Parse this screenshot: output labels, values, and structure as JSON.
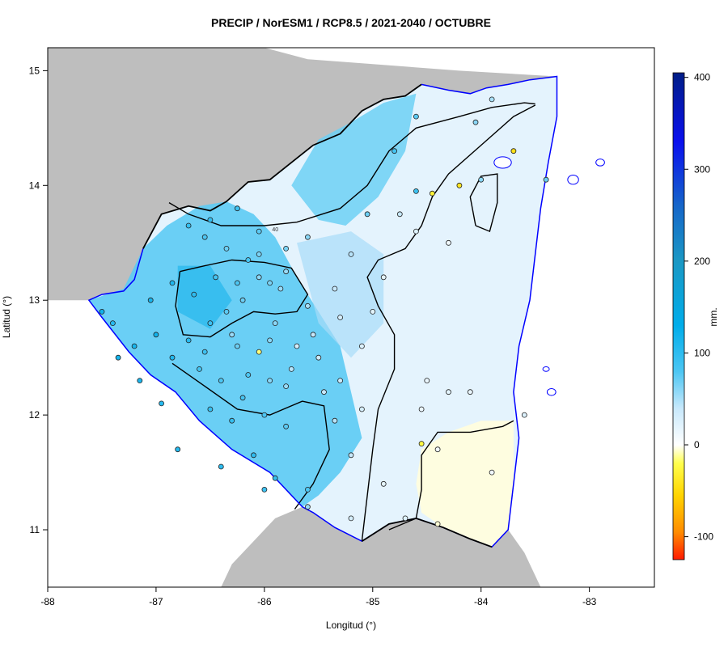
{
  "title": "PRECIP / NorESM1 / RCP8.5 / 2021-2040 / OCTUBRE",
  "xlabel": "Longitud (°)",
  "ylabel": "Latitud (°)",
  "colorbar": {
    "unit": "mm.",
    "range": [
      -125,
      405
    ],
    "ticks": [
      {
        "value": -100,
        "label": "-100"
      },
      {
        "value": 0,
        "label": "0"
      },
      {
        "value": 100,
        "label": "100"
      },
      {
        "value": 200,
        "label": "200"
      },
      {
        "value": 300,
        "label": "300"
      },
      {
        "value": 400,
        "label": "400"
      }
    ],
    "stops": [
      {
        "value": -125,
        "color": "#ff1a00"
      },
      {
        "value": -95,
        "color": "#ff8c00"
      },
      {
        "value": -55,
        "color": "#ffd400"
      },
      {
        "value": -20,
        "color": "#ffff4d"
      },
      {
        "value": -5,
        "color": "#ffffd6"
      },
      {
        "value": 0,
        "color": "#ffffff"
      },
      {
        "value": 40,
        "color": "#c7e8fb"
      },
      {
        "value": 80,
        "color": "#4cc6f3"
      },
      {
        "value": 130,
        "color": "#00adea"
      },
      {
        "value": 200,
        "color": "#1b98c4"
      },
      {
        "value": 260,
        "color": "#1666c9"
      },
      {
        "value": 330,
        "color": "#0a10ee"
      },
      {
        "value": 405,
        "color": "#001e86"
      }
    ]
  },
  "map": {
    "lon_range": [
      -88,
      -82.4
    ],
    "lat_range": [
      10.5,
      15.2
    ],
    "x_ticks": [
      {
        "value": -88,
        "label": "-88"
      },
      {
        "value": -87,
        "label": "-87"
      },
      {
        "value": -86,
        "label": "-86"
      },
      {
        "value": -85,
        "label": "-85"
      },
      {
        "value": -84,
        "label": "-84"
      },
      {
        "value": -83,
        "label": "-83"
      }
    ],
    "y_ticks": [
      {
        "value": 11,
        "label": "11"
      },
      {
        "value": 12,
        "label": "12"
      },
      {
        "value": 13,
        "label": "13"
      },
      {
        "value": 14,
        "label": "14"
      },
      {
        "value": 15,
        "label": "15"
      }
    ],
    "colors": {
      "background_land": "#bebebe",
      "ocean": "#ffffff",
      "coastline": "#0000ff",
      "border": "#000000",
      "contour": "#000000"
    },
    "contour_label": "40",
    "country_outline": [
      [
        -87.12,
        13.45
      ],
      [
        -86.95,
        13.75
      ],
      [
        -86.7,
        13.82
      ],
      [
        -86.5,
        13.78
      ],
      [
        -86.35,
        13.86
      ],
      [
        -86.15,
        14.03
      ],
      [
        -85.95,
        14.05
      ],
      [
        -85.75,
        14.2
      ],
      [
        -85.55,
        14.35
      ],
      [
        -85.3,
        14.45
      ],
      [
        -85.1,
        14.65
      ],
      [
        -84.9,
        14.75
      ],
      [
        -84.7,
        14.78
      ],
      [
        -84.55,
        14.88
      ],
      [
        -84.3,
        14.83
      ],
      [
        -84.1,
        14.8
      ],
      [
        -83.95,
        14.85
      ],
      [
        -83.75,
        14.88
      ],
      [
        -83.55,
        14.92
      ],
      [
        -83.3,
        14.95
      ],
      [
        -83.3,
        14.6
      ],
      [
        -83.38,
        14.2
      ],
      [
        -83.45,
        13.8
      ],
      [
        -83.5,
        13.4
      ],
      [
        -83.55,
        13.0
      ],
      [
        -83.65,
        12.6
      ],
      [
        -83.7,
        12.2
      ],
      [
        -83.65,
        11.8
      ],
      [
        -83.7,
        11.4
      ],
      [
        -83.75,
        11.0
      ],
      [
        -83.9,
        10.85
      ],
      [
        -84.1,
        10.92
      ],
      [
        -84.35,
        11.02
      ],
      [
        -84.6,
        11.1
      ],
      [
        -84.85,
        11.05
      ],
      [
        -85.1,
        10.9
      ],
      [
        -85.35,
        11.02
      ],
      [
        -85.55,
        11.15
      ],
      [
        -85.65,
        11.2
      ],
      [
        -85.95,
        11.5
      ],
      [
        -86.3,
        11.7
      ],
      [
        -86.6,
        11.95
      ],
      [
        -86.82,
        12.2
      ],
      [
        -87.05,
        12.35
      ],
      [
        -87.25,
        12.55
      ],
      [
        -87.5,
        12.85
      ],
      [
        -87.62,
        13.0
      ],
      [
        -87.5,
        13.05
      ],
      [
        -87.3,
        13.08
      ],
      [
        -87.2,
        13.18
      ],
      [
        -87.12,
        13.45
      ]
    ],
    "dry_region": [
      [
        -84.0,
        11.95
      ],
      [
        -83.7,
        11.95
      ],
      [
        -83.7,
        11.4
      ],
      [
        -83.75,
        11.0
      ],
      [
        -83.9,
        10.85
      ],
      [
        -84.1,
        10.92
      ],
      [
        -84.35,
        11.02
      ],
      [
        -84.55,
        11.15
      ],
      [
        -84.6,
        11.4
      ],
      [
        -84.55,
        11.7
      ],
      [
        -84.3,
        11.85
      ],
      [
        -84.0,
        11.95
      ]
    ],
    "wet_region_west": [
      [
        -87.62,
        13.0
      ],
      [
        -87.3,
        13.1
      ],
      [
        -87.12,
        13.45
      ],
      [
        -86.9,
        13.65
      ],
      [
        -86.6,
        13.82
      ],
      [
        -86.35,
        13.86
      ],
      [
        -86.1,
        13.75
      ],
      [
        -85.9,
        13.55
      ],
      [
        -85.7,
        13.2
      ],
      [
        -85.5,
        12.9
      ],
      [
        -85.3,
        12.6
      ],
      [
        -85.2,
        12.2
      ],
      [
        -85.1,
        11.8
      ],
      [
        -85.3,
        11.5
      ],
      [
        -85.5,
        11.3
      ],
      [
        -85.65,
        11.2
      ],
      [
        -85.95,
        11.5
      ],
      [
        -86.3,
        11.7
      ],
      [
        -86.6,
        11.95
      ],
      [
        -86.82,
        12.2
      ],
      [
        -87.05,
        12.35
      ],
      [
        -87.25,
        12.55
      ],
      [
        -87.5,
        12.85
      ],
      [
        -87.62,
        13.0
      ]
    ],
    "wet_region_north": [
      [
        -85.5,
        14.4
      ],
      [
        -85.2,
        14.55
      ],
      [
        -84.9,
        14.72
      ],
      [
        -84.6,
        14.8
      ],
      [
        -84.7,
        14.3
      ],
      [
        -84.95,
        13.9
      ],
      [
        -85.25,
        13.65
      ],
      [
        -85.5,
        13.7
      ],
      [
        -85.75,
        14.0
      ],
      [
        -85.5,
        14.4
      ]
    ],
    "contours": [
      [
        [
          -86.88,
          13.85
        ],
        [
          -86.7,
          13.75
        ],
        [
          -86.4,
          13.65
        ],
        [
          -86.0,
          13.65
        ],
        [
          -85.7,
          13.68
        ],
        [
          -85.3,
          13.8
        ],
        [
          -85.05,
          14.0
        ],
        [
          -84.85,
          14.3
        ],
        [
          -84.6,
          14.5
        ],
        [
          -84.2,
          14.6
        ],
        [
          -83.9,
          14.68
        ],
        [
          -83.6,
          14.72
        ],
        [
          -83.5,
          14.71
        ]
      ],
      [
        [
          -86.78,
          13.25
        ],
        [
          -86.55,
          13.3
        ],
        [
          -86.3,
          13.35
        ],
        [
          -86.0,
          13.33
        ],
        [
          -85.75,
          13.28
        ],
        [
          -85.6,
          13.05
        ],
        [
          -85.7,
          12.9
        ],
        [
          -85.9,
          12.88
        ],
        [
          -86.1,
          12.9
        ],
        [
          -86.3,
          12.8
        ],
        [
          -86.5,
          12.68
        ],
        [
          -86.75,
          12.7
        ],
        [
          -86.82,
          12.95
        ],
        [
          -86.78,
          13.25
        ]
      ],
      [
        [
          -86.85,
          12.45
        ],
        [
          -86.55,
          12.25
        ],
        [
          -86.25,
          12.05
        ],
        [
          -85.95,
          12.0
        ],
        [
          -85.65,
          12.12
        ],
        [
          -85.45,
          12.08
        ],
        [
          -85.4,
          11.7
        ],
        [
          -85.55,
          11.4
        ],
        [
          -85.72,
          11.18
        ]
      ],
      [
        [
          -85.1,
          10.9
        ],
        [
          -85.05,
          11.3
        ],
        [
          -85.0,
          11.7
        ],
        [
          -84.95,
          12.05
        ],
        [
          -84.8,
          12.4
        ],
        [
          -84.8,
          12.7
        ],
        [
          -84.95,
          12.95
        ],
        [
          -85.05,
          13.2
        ],
        [
          -84.95,
          13.35
        ],
        [
          -84.7,
          13.45
        ],
        [
          -84.55,
          13.65
        ],
        [
          -84.45,
          13.9
        ],
        [
          -84.3,
          14.1
        ],
        [
          -84.0,
          14.35
        ],
        [
          -83.7,
          14.6
        ],
        [
          -83.5,
          14.7
        ]
      ],
      [
        [
          -84.05,
          13.65
        ],
        [
          -84.1,
          13.9
        ],
        [
          -84.0,
          14.08
        ],
        [
          -83.85,
          14.1
        ],
        [
          -83.85,
          13.85
        ],
        [
          -83.92,
          13.6
        ],
        [
          -84.05,
          13.65
        ]
      ],
      [
        [
          -84.85,
          11.0
        ],
        [
          -84.6,
          11.1
        ],
        [
          -84.55,
          11.35
        ],
        [
          -84.55,
          11.65
        ],
        [
          -84.4,
          11.85
        ],
        [
          -84.1,
          11.85
        ],
        [
          -83.8,
          11.9
        ],
        [
          -83.7,
          11.95
        ]
      ]
    ],
    "stations": [
      [
        -86.7,
        13.65,
        95
      ],
      [
        -86.55,
        13.55,
        80
      ],
      [
        -86.35,
        13.45,
        70
      ],
      [
        -86.15,
        13.35,
        85
      ],
      [
        -86.05,
        13.2,
        60
      ],
      [
        -85.95,
        13.15,
        65
      ],
      [
        -85.85,
        13.1,
        55
      ],
      [
        -86.2,
        13.0,
        70
      ],
      [
        -86.35,
        12.9,
        75
      ],
      [
        -86.5,
        12.8,
        90
      ],
      [
        -86.7,
        12.65,
        105
      ],
      [
        -86.85,
        12.5,
        110
      ],
      [
        -87.0,
        12.7,
        120
      ],
      [
        -87.2,
        12.6,
        115
      ],
      [
        -87.4,
        12.8,
        105
      ],
      [
        -86.6,
        12.4,
        85
      ],
      [
        -86.4,
        12.3,
        80
      ],
      [
        -86.2,
        12.15,
        85
      ],
      [
        -86.0,
        12.0,
        80
      ],
      [
        -85.8,
        11.9,
        75
      ],
      [
        -86.3,
        11.95,
        95
      ],
      [
        -86.1,
        11.65,
        100
      ],
      [
        -85.9,
        11.45,
        95
      ],
      [
        -85.6,
        11.35,
        80
      ],
      [
        -85.3,
        12.3,
        35
      ],
      [
        -85.1,
        12.6,
        25
      ],
      [
        -85.0,
        12.9,
        20
      ],
      [
        -84.9,
        13.2,
        20
      ],
      [
        -84.6,
        13.6,
        25
      ],
      [
        -84.3,
        13.5,
        10
      ],
      [
        -84.6,
        13.95,
        90
      ],
      [
        -84.45,
        13.93,
        -30
      ],
      [
        -84.2,
        14.0,
        -40
      ],
      [
        -84.0,
        14.05,
        60
      ],
      [
        -83.7,
        14.3,
        -45
      ],
      [
        -83.4,
        14.05,
        70
      ],
      [
        -84.05,
        14.55,
        60
      ],
      [
        -84.1,
        12.2,
        15
      ],
      [
        -84.4,
        11.7,
        10
      ],
      [
        -84.55,
        11.75,
        -25
      ],
      [
        -84.4,
        11.05,
        -5
      ],
      [
        -84.7,
        11.1,
        25
      ],
      [
        -84.9,
        11.4,
        20
      ],
      [
        -85.2,
        11.1,
        30
      ],
      [
        -85.6,
        11.2,
        55
      ],
      [
        -86.0,
        11.35,
        90
      ],
      [
        -86.4,
        11.55,
        100
      ],
      [
        -86.8,
        11.7,
        105
      ],
      [
        -85.7,
        12.6,
        30
      ],
      [
        -85.5,
        12.5,
        35
      ],
      [
        -85.45,
        12.2,
        40
      ],
      [
        -85.35,
        11.95,
        45
      ],
      [
        -85.8,
        12.25,
        55
      ],
      [
        -86.05,
        12.55,
        -15
      ],
      [
        -86.3,
        12.7,
        55
      ],
      [
        -85.9,
        12.8,
        60
      ],
      [
        -85.6,
        12.95,
        50
      ],
      [
        -85.35,
        13.1,
        40
      ],
      [
        -85.2,
        13.4,
        45
      ],
      [
        -85.05,
        13.75,
        70
      ],
      [
        -84.75,
        13.75,
        40
      ],
      [
        -84.55,
        12.05,
        15
      ],
      [
        -84.3,
        12.2,
        20
      ],
      [
        -83.6,
        12.0,
        25
      ],
      [
        -83.9,
        11.5,
        10
      ],
      [
        -86.85,
        13.15,
        110
      ],
      [
        -87.05,
        13.0,
        115
      ],
      [
        -86.65,
        13.05,
        100
      ],
      [
        -86.45,
        13.2,
        85
      ],
      [
        -86.25,
        13.15,
        80
      ],
      [
        -86.05,
        13.4,
        65
      ],
      [
        -85.8,
        13.25,
        55
      ],
      [
        -87.5,
        12.9,
        120
      ],
      [
        -87.35,
        12.5,
        115
      ],
      [
        -87.15,
        12.3,
        110
      ],
      [
        -86.95,
        12.1,
        105
      ],
      [
        -86.5,
        12.05,
        95
      ],
      [
        -86.25,
        12.6,
        70
      ],
      [
        -85.95,
        12.65,
        60
      ],
      [
        -85.75,
        12.4,
        45
      ],
      [
        -85.55,
        12.7,
        40
      ],
      [
        -85.3,
        12.85,
        30
      ],
      [
        -85.6,
        13.55,
        60
      ],
      [
        -85.8,
        13.45,
        65
      ],
      [
        -86.05,
        13.6,
        75
      ],
      [
        -86.25,
        13.8,
        90
      ],
      [
        -86.5,
        13.7,
        95
      ],
      [
        -84.8,
        14.3,
        85
      ],
      [
        -84.6,
        14.6,
        75
      ],
      [
        -83.9,
        14.75,
        50
      ],
      [
        -84.5,
        12.3,
        15
      ],
      [
        -85.1,
        12.05,
        30
      ],
      [
        -85.2,
        11.65,
        40
      ],
      [
        -86.15,
        12.35,
        80
      ],
      [
        -86.55,
        12.55,
        90
      ],
      [
        -85.95,
        12.3,
        60
      ]
    ],
    "islands": [
      [
        -83.8,
        14.2,
        0.08,
        0.05
      ],
      [
        -83.15,
        14.05,
        0.05,
        0.04
      ],
      [
        -82.9,
        14.2,
        0.04,
        0.03
      ],
      [
        -83.35,
        12.2,
        0.04,
        0.03
      ],
      [
        -83.4,
        12.4,
        0.03,
        0.02
      ]
    ]
  }
}
